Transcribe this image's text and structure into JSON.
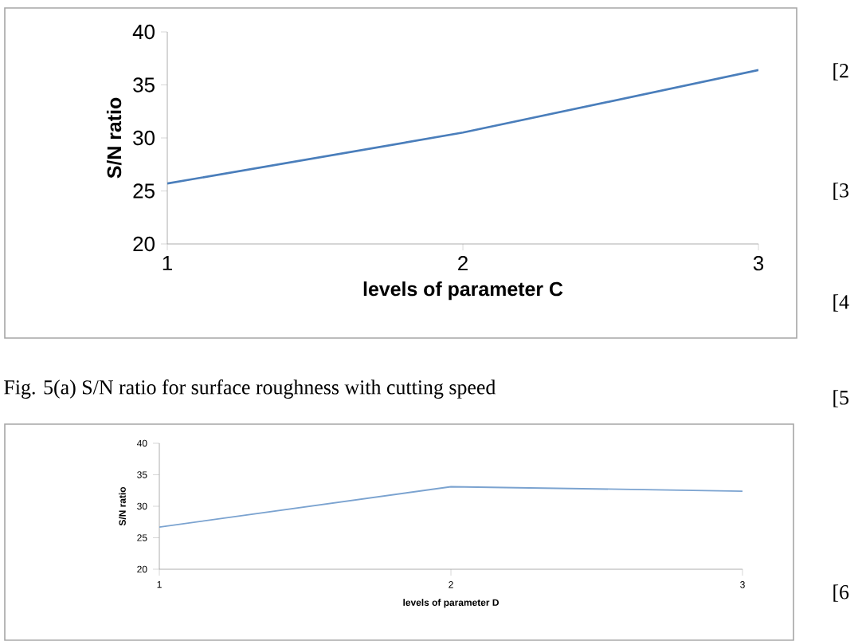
{
  "chart_data": [
    {
      "type": "line",
      "xlabel": "levels of parameter C",
      "ylabel": "S/N ratio",
      "x": [
        1,
        2,
        3
      ],
      "values": [
        25.7,
        30.5,
        36.4
      ],
      "color": "#4a7ebb",
      "xlim": [
        1,
        3
      ],
      "xticks": [
        1,
        2,
        3
      ],
      "ylim": [
        20,
        40
      ],
      "yticks": [
        20,
        25,
        30,
        35,
        40
      ],
      "annotations": [
        "Fig. 5(a) S/N ratio for surface roughness with cutting speed"
      ]
    },
    {
      "type": "line",
      "xlabel": "levels of parameter D",
      "ylabel": "S/N ratio",
      "x": [
        1,
        2,
        3
      ],
      "values": [
        26.7,
        33.1,
        32.4
      ],
      "color": "#7ba3d0",
      "xlim": [
        1,
        3
      ],
      "xticks": [
        1,
        2,
        3
      ],
      "ylim": [
        20,
        40
      ],
      "yticks": [
        20,
        25,
        30,
        35,
        40
      ]
    },
    {
      "type": "other",
      "annotations": [
        "[2",
        "[3",
        "[4",
        "[5",
        "[6"
      ]
    }
  ]
}
